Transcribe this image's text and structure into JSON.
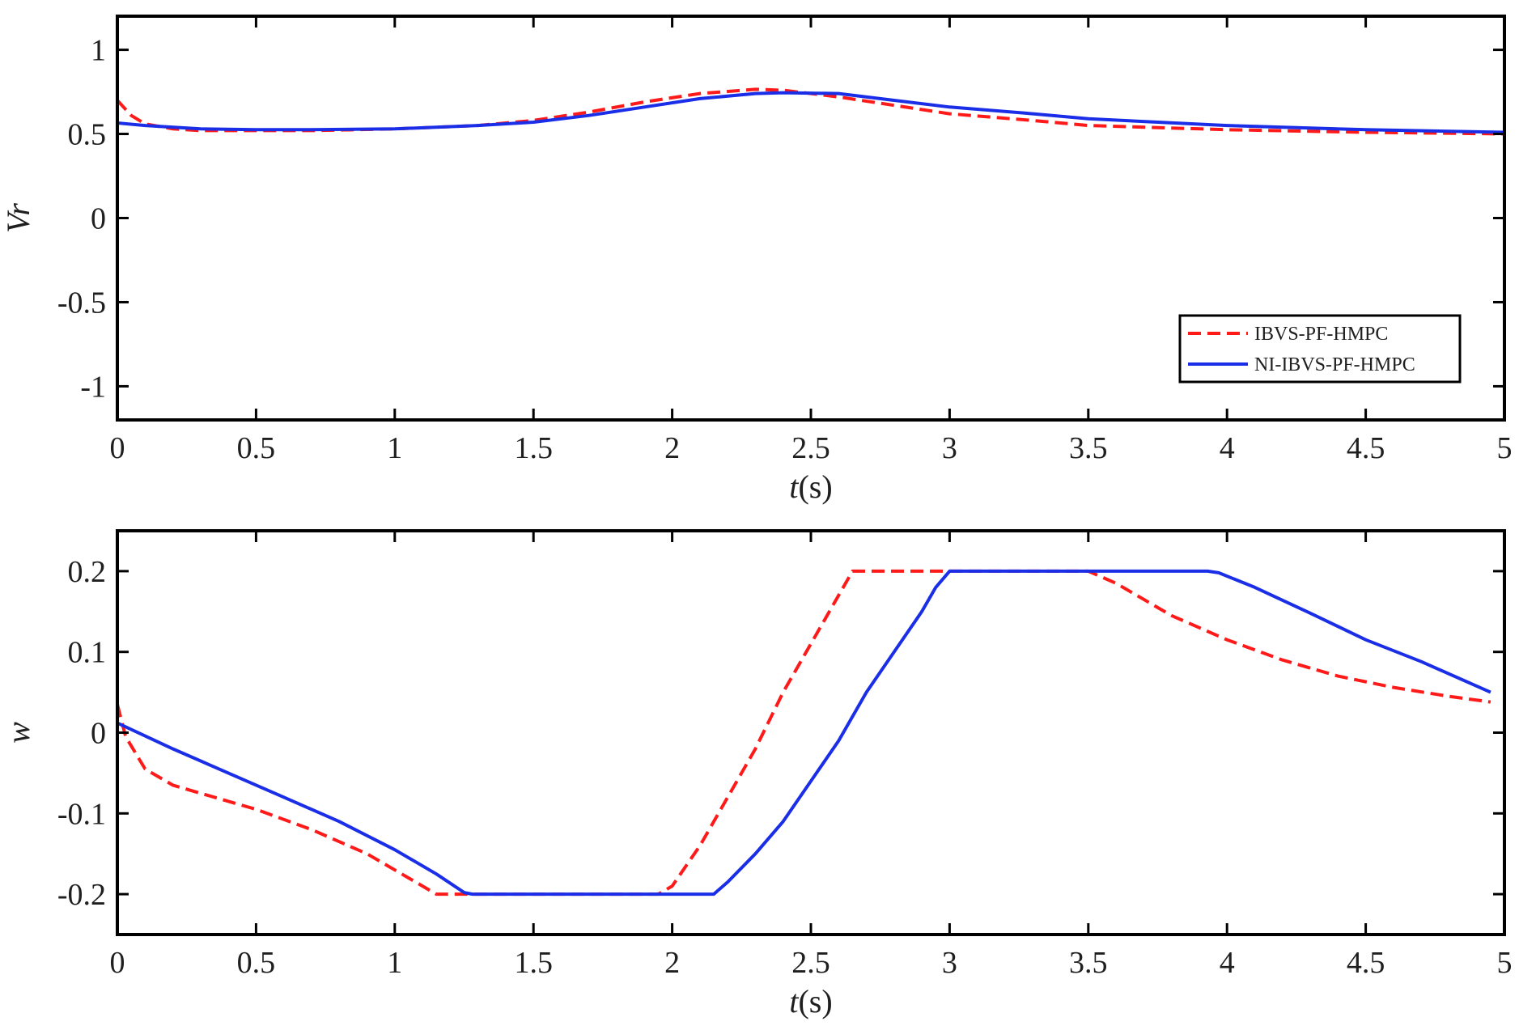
{
  "chart_data": [
    {
      "type": "line",
      "ylabel_parts": [
        "V",
        "r"
      ],
      "xlabel_parts": [
        "t",
        "(s)"
      ],
      "xlim": [
        0,
        5
      ],
      "ylim": [
        -1.2,
        1.2
      ],
      "xticks": [
        0,
        0.5,
        1,
        1.5,
        2,
        2.5,
        3,
        3.5,
        4,
        4.5,
        5
      ],
      "xtick_labels": [
        "0",
        "0.5",
        "1",
        "1.5",
        "2",
        "2.5",
        "3",
        "3.5",
        "4",
        "4.5",
        "5"
      ],
      "yticks": [
        1,
        0.5,
        0,
        -0.5,
        -1
      ],
      "ytick_labels": [
        "1",
        "0.5",
        "0",
        "-0.5",
        "-1"
      ],
      "grid": false,
      "legend_position": "bottom-right",
      "series": [
        {
          "name": "IBVS-PF-HMPC",
          "color": "#ff1a1a",
          "style": "dashed",
          "points": [
            [
              0,
              0.7
            ],
            [
              0.05,
              0.61
            ],
            [
              0.1,
              0.56
            ],
            [
              0.2,
              0.53
            ],
            [
              0.3,
              0.52
            ],
            [
              0.5,
              0.52
            ],
            [
              0.7,
              0.52
            ],
            [
              1.0,
              0.53
            ],
            [
              1.3,
              0.55
            ],
            [
              1.5,
              0.58
            ],
            [
              1.7,
              0.63
            ],
            [
              1.9,
              0.69
            ],
            [
              2.1,
              0.74
            ],
            [
              2.3,
              0.765
            ],
            [
              2.4,
              0.76
            ],
            [
              2.6,
              0.72
            ],
            [
              2.8,
              0.67
            ],
            [
              3.0,
              0.62
            ],
            [
              3.3,
              0.58
            ],
            [
              3.5,
              0.55
            ],
            [
              4.0,
              0.525
            ],
            [
              4.5,
              0.51
            ],
            [
              5.0,
              0.5
            ]
          ]
        },
        {
          "name": "NI-IBVS-PF-HMPC",
          "color": "#1a2ee8",
          "style": "solid",
          "points": [
            [
              0,
              0.565
            ],
            [
              0.1,
              0.55
            ],
            [
              0.3,
              0.53
            ],
            [
              0.5,
              0.525
            ],
            [
              0.7,
              0.525
            ],
            [
              1.0,
              0.53
            ],
            [
              1.3,
              0.55
            ],
            [
              1.5,
              0.57
            ],
            [
              1.7,
              0.61
            ],
            [
              1.9,
              0.66
            ],
            [
              2.1,
              0.71
            ],
            [
              2.3,
              0.74
            ],
            [
              2.4,
              0.745
            ],
            [
              2.6,
              0.74
            ],
            [
              2.8,
              0.7
            ],
            [
              3.0,
              0.66
            ],
            [
              3.3,
              0.62
            ],
            [
              3.5,
              0.59
            ],
            [
              4.0,
              0.55
            ],
            [
              4.5,
              0.525
            ],
            [
              5.0,
              0.51
            ]
          ]
        }
      ]
    },
    {
      "type": "line",
      "ylabel_parts": [
        "w",
        ""
      ],
      "xlabel_parts": [
        "t",
        "(s)"
      ],
      "xlim": [
        0,
        5
      ],
      "ylim": [
        -0.25,
        0.25
      ],
      "xticks": [
        0,
        0.5,
        1,
        1.5,
        2,
        2.5,
        3,
        3.5,
        4,
        4.5,
        5
      ],
      "xtick_labels": [
        "0",
        "0.5",
        "1",
        "1.5",
        "2",
        "2.5",
        "3",
        "3.5",
        "4",
        "4.5",
        "5"
      ],
      "yticks": [
        0.2,
        0.1,
        0,
        -0.1,
        -0.2
      ],
      "ytick_labels": [
        "0.2",
        "0.1",
        "0",
        "-0.1",
        "-0.2"
      ],
      "grid": false,
      "series": [
        {
          "name": "IBVS-PF-HMPC",
          "color": "#ff1a1a",
          "style": "dashed",
          "points": [
            [
              0,
              0.035
            ],
            [
              0.03,
              -0.005
            ],
            [
              0.1,
              -0.045
            ],
            [
              0.2,
              -0.065
            ],
            [
              0.3,
              -0.075
            ],
            [
              0.5,
              -0.095
            ],
            [
              0.7,
              -0.12
            ],
            [
              0.9,
              -0.15
            ],
            [
              1.05,
              -0.18
            ],
            [
              1.15,
              -0.2
            ],
            [
              1.95,
              -0.2
            ],
            [
              2.0,
              -0.19
            ],
            [
              2.1,
              -0.14
            ],
            [
              2.2,
              -0.08
            ],
            [
              2.3,
              -0.02
            ],
            [
              2.4,
              0.05
            ],
            [
              2.5,
              0.11
            ],
            [
              2.6,
              0.17
            ],
            [
              2.65,
              0.2
            ],
            [
              3.5,
              0.2
            ],
            [
              3.6,
              0.185
            ],
            [
              3.8,
              0.145
            ],
            [
              4.0,
              0.115
            ],
            [
              4.2,
              0.09
            ],
            [
              4.4,
              0.07
            ],
            [
              4.6,
              0.056
            ],
            [
              4.8,
              0.045
            ],
            [
              4.95,
              0.038
            ]
          ]
        },
        {
          "name": "NI-IBVS-PF-HMPC",
          "color": "#1a2ee8",
          "style": "solid",
          "points": [
            [
              0,
              0.012
            ],
            [
              0.2,
              -0.02
            ],
            [
              0.4,
              -0.05
            ],
            [
              0.6,
              -0.08
            ],
            [
              0.8,
              -0.11
            ],
            [
              1.0,
              -0.145
            ],
            [
              1.15,
              -0.175
            ],
            [
              1.25,
              -0.198
            ],
            [
              1.28,
              -0.2
            ],
            [
              2.15,
              -0.2
            ],
            [
              2.2,
              -0.185
            ],
            [
              2.3,
              -0.15
            ],
            [
              2.4,
              -0.11
            ],
            [
              2.5,
              -0.06
            ],
            [
              2.6,
              -0.01
            ],
            [
              2.7,
              0.05
            ],
            [
              2.8,
              0.1
            ],
            [
              2.9,
              0.15
            ],
            [
              2.95,
              0.18
            ],
            [
              3.0,
              0.2
            ],
            [
              3.93,
              0.2
            ],
            [
              3.97,
              0.198
            ],
            [
              4.1,
              0.18
            ],
            [
              4.3,
              0.148
            ],
            [
              4.5,
              0.115
            ],
            [
              4.7,
              0.088
            ],
            [
              4.95,
              0.05
            ]
          ]
        }
      ]
    }
  ]
}
